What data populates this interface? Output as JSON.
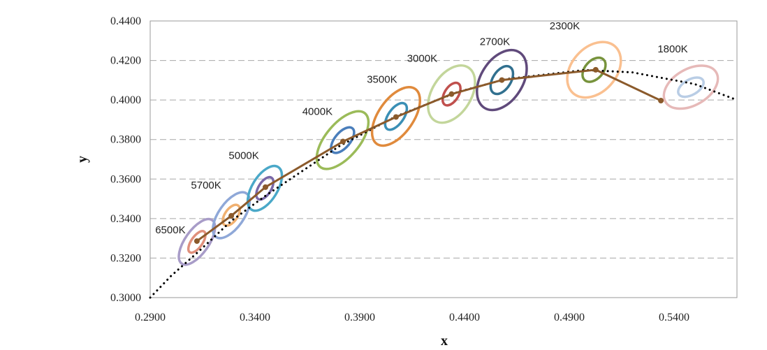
{
  "chart_data": {
    "type": "scatter",
    "title": "",
    "xlabel": "x",
    "ylabel": "y",
    "xlim": [
      0.29,
      0.57
    ],
    "ylim": [
      0.3,
      0.44
    ],
    "x_ticks": [
      "0.2900",
      "0.3400",
      "0.3900",
      "0.4400",
      "0.4900",
      "0.5400"
    ],
    "x_tick_values": [
      0.29,
      0.34,
      0.39,
      0.44,
      0.49,
      0.54
    ],
    "y_ticks": [
      "0.3000",
      "0.3200",
      "0.3400",
      "0.3600",
      "0.3800",
      "0.4000",
      "0.4200",
      "0.4400"
    ],
    "y_tick_values": [
      0.3,
      0.32,
      0.34,
      0.36,
      0.38,
      0.4,
      0.42,
      0.44
    ],
    "grid": {
      "horizontal": true,
      "style": "dashed"
    },
    "measured_line": {
      "color": "#8b5a2b",
      "points": [
        [
          0.3123,
          0.3286
        ],
        [
          0.3287,
          0.3414
        ],
        [
          0.345,
          0.3559
        ],
        [
          0.382,
          0.379
        ],
        [
          0.4073,
          0.3914
        ],
        [
          0.4338,
          0.403
        ],
        [
          0.4578,
          0.4101
        ],
        [
          0.5026,
          0.4153
        ],
        [
          0.5337,
          0.3997
        ]
      ]
    },
    "planckian_locus": {
      "style": "dotted",
      "color": "#000000",
      "points": [
        [
          0.29,
          0.3
        ],
        [
          0.3,
          0.311
        ],
        [
          0.3135,
          0.3237
        ],
        [
          0.3287,
          0.3388
        ],
        [
          0.3451,
          0.3516
        ],
        [
          0.3805,
          0.3768
        ],
        [
          0.4073,
          0.3917
        ],
        [
          0.4369,
          0.4041
        ],
        [
          0.4599,
          0.4106
        ],
        [
          0.4974,
          0.4152
        ],
        [
          0.52,
          0.414
        ],
        [
          0.5497,
          0.4081
        ],
        [
          0.57,
          0.4
        ]
      ]
    },
    "ellipses": [
      {
        "label": "6500K",
        "center": [
          0.3123,
          0.3282
        ],
        "outer_color": "#a89cc8",
        "inner_color": "#e0907c"
      },
      {
        "label": "5700K",
        "center": [
          0.3287,
          0.3417
        ],
        "outer_color": "#8fa8d8",
        "inner_color": "#f0b070"
      },
      {
        "label": "5000K",
        "center": [
          0.3447,
          0.3553
        ],
        "outer_color": "#4aa8c8",
        "inner_color": "#7a68a8"
      },
      {
        "label": "4000K",
        "center": [
          0.3818,
          0.3797
        ],
        "outer_color": "#9bbb59",
        "inner_color": "#4a7ebb"
      },
      {
        "label": "3500K",
        "center": [
          0.4073,
          0.3917
        ],
        "outer_color": "#e08a3c",
        "inner_color": "#3a8fb5"
      },
      {
        "label": "3000K",
        "center": [
          0.4338,
          0.403
        ],
        "outer_color": "#c3d69b",
        "inner_color": "#c0504d"
      },
      {
        "label": "2700K",
        "center": [
          0.4578,
          0.4101
        ],
        "outer_color": "#604a7b",
        "inner_color": "#31708f"
      },
      {
        "label": "2300K",
        "center": [
          0.5018,
          0.4153
        ],
        "outer_color": "#fac090",
        "inner_color": "#77933c"
      },
      {
        "label": "1800K",
        "center": [
          0.548,
          0.4065
        ],
        "outer_color": "#e6b9b8",
        "inner_color": "#b9cde5"
      }
    ]
  }
}
